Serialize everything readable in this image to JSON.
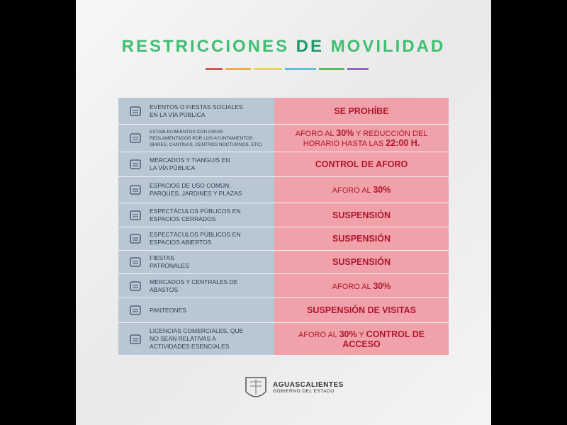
{
  "header": {
    "title_parts": [
      "RESTRICCIONES",
      "DE",
      "MOVILIDAD"
    ]
  },
  "table": {
    "rows": [
      {
        "left": [
          "EVENTOS O FIESTAS SOCIALES",
          "EN LA VÍA PÚBLICA"
        ],
        "right": [
          {
            "text": "SE PROHÍBE",
            "bold": true
          }
        ]
      },
      {
        "left": [
          "ESTABLECIMIENTOS CON GIROS",
          "REGLAMENTADOS POR LOS AYUNTAMIENTOS",
          "(BARES, CANTINAS, CENTROS NOCTURNOS, ETC)"
        ],
        "small": true,
        "right": [
          {
            "text": "AFORO AL ",
            "bold": false
          },
          {
            "text": "30%",
            "bold": true
          },
          {
            "text": " Y REDUCCIÓN DEL HORARIO HASTA LAS ",
            "bold": false
          },
          {
            "text": "22:00 H.",
            "bold": true
          }
        ]
      },
      {
        "left": [
          "MERCADOS Y TIANGUIS EN",
          "LA VÍA PÚBLICA"
        ],
        "right": [
          {
            "text": "CONTROL DE AFORO",
            "bold": true
          }
        ]
      },
      {
        "left": [
          "ESPACIOS DE USO COMÚN,",
          "PARQUES, JARDINES Y PLAZAS"
        ],
        "right": [
          {
            "text": "AFORO AL ",
            "bold": false
          },
          {
            "text": "30%",
            "bold": true
          }
        ]
      },
      {
        "left": [
          "ESPECTÁCULOS PÚBLICOS EN",
          "ESPACIOS CERRADOS"
        ],
        "right": [
          {
            "text": "SUSPENSIÓN",
            "bold": true
          }
        ]
      },
      {
        "left": [
          "ESPECTÁCULOS PÚBLICOS EN",
          "ESPACIOS ABIERTOS"
        ],
        "right": [
          {
            "text": "SUSPENSIÓN",
            "bold": true
          }
        ]
      },
      {
        "left": [
          "FIESTAS",
          "PATRONALES"
        ],
        "right": [
          {
            "text": "SUSPENSIÓN",
            "bold": true
          }
        ]
      },
      {
        "left": [
          "MERCADOS Y  CENTRALES DE",
          "ABASTOS"
        ],
        "right": [
          {
            "text": "AFORO AL ",
            "bold": false
          },
          {
            "text": "30%",
            "bold": true
          }
        ]
      },
      {
        "left": [
          "PANTEONES"
        ],
        "right": [
          {
            "text": "SUSPENSIÓN DE VISITAS",
            "bold": true
          }
        ]
      },
      {
        "left": [
          "LICENCIAS COMERCIALES, QUE",
          "NO SEAN RELATIVAS A",
          "ACTIVIDADES ESENCIALES"
        ],
        "right": [
          {
            "text": "AFORO AL ",
            "bold": false
          },
          {
            "text": "30%",
            "bold": true
          },
          {
            "text": " Y ",
            "bold": false
          },
          {
            "text": "CONTROL DE ACCESO",
            "bold": true
          }
        ]
      }
    ]
  },
  "footer": {
    "name": "AGUASCALIENTES",
    "subtitle": "GOBIERNO DEL ESTADO"
  }
}
